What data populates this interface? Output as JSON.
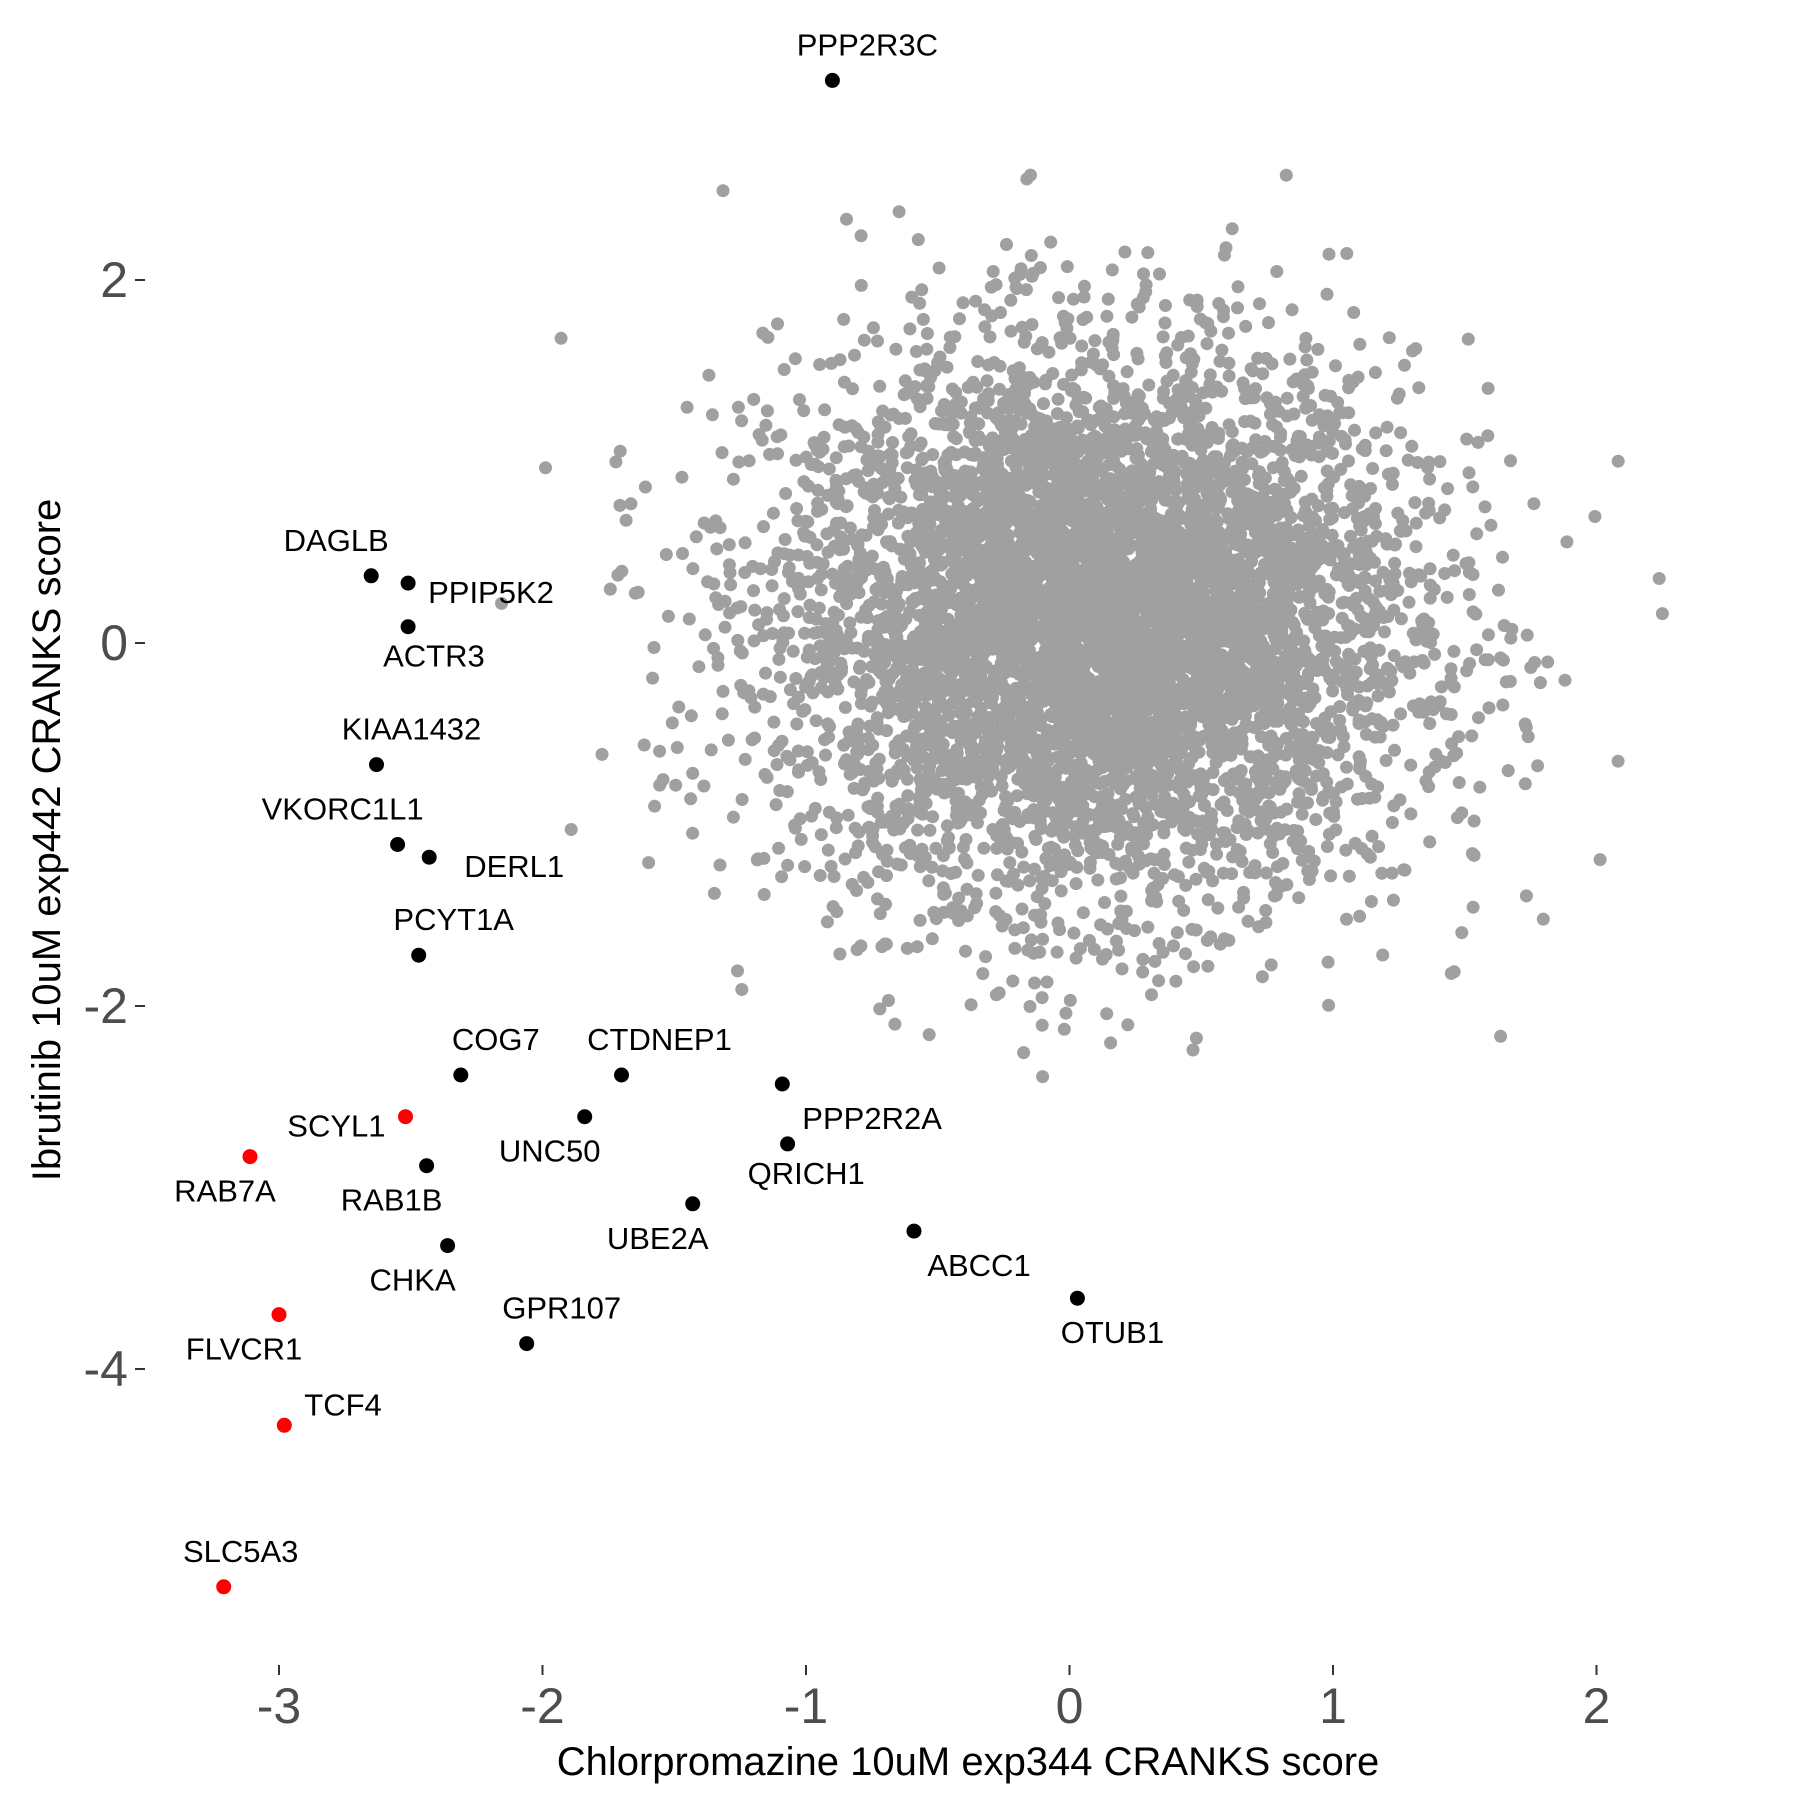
{
  "chart_data": {
    "type": "scatter",
    "title": "",
    "xlabel": "Chlorpromazine 10uM exp344 CRANKS score",
    "ylabel": "Ibrutinib 10uM exp442 CRANKS score",
    "xlim": [
      -3.3,
      2.5
    ],
    "ylim": [
      -5.6,
      3.3
    ],
    "x_ticks": [
      -3,
      -2,
      -1,
      0,
      1,
      2
    ],
    "y_ticks": [
      -4,
      -2,
      0,
      2
    ],
    "x_tick_labels": [
      "-3",
      "-2",
      "-1",
      "0",
      "1",
      "2"
    ],
    "y_tick_labels": [
      "-4",
      "-2",
      "0",
      "2"
    ],
    "grid": false,
    "legend": "none",
    "colors": {
      "background_points": "#a0a0a0",
      "labeled_points": "#000000",
      "highlighted_points": "#ff0000",
      "tick_text": "#4d4d4d"
    },
    "background_cloud": {
      "description_count": "thousands of genes",
      "center": [
        0.1,
        0.1
      ],
      "sd_x": 0.6,
      "sd_y": 0.75,
      "n_points": 6000
    },
    "labeled_points": [
      {
        "label": "PPP2R3C",
        "x": -0.9,
        "y": 3.1,
        "color": "black"
      },
      {
        "label": "DAGLB",
        "x": -2.65,
        "y": 0.37,
        "color": "black"
      },
      {
        "label": "PPIP5K2",
        "x": -2.51,
        "y": 0.33,
        "color": "black"
      },
      {
        "label": "ACTR3",
        "x": -2.51,
        "y": 0.09,
        "color": "black"
      },
      {
        "label": "KIAA1432",
        "x": -2.63,
        "y": -0.67,
        "color": "black"
      },
      {
        "label": "VKORC1L1",
        "x": -2.55,
        "y": -1.11,
        "color": "black"
      },
      {
        "label": "DERL1",
        "x": -2.43,
        "y": -1.18,
        "color": "black"
      },
      {
        "label": "PCYT1A",
        "x": -2.47,
        "y": -1.72,
        "color": "black"
      },
      {
        "label": "COG7",
        "x": -2.31,
        "y": -2.38,
        "color": "black"
      },
      {
        "label": "CTDNEP1",
        "x": -1.7,
        "y": -2.38,
        "color": "black"
      },
      {
        "label": "PPP2R2A",
        "x": -1.09,
        "y": -2.43,
        "color": "black"
      },
      {
        "label": "SCYL1",
        "x": -2.52,
        "y": -2.61,
        "color": "red"
      },
      {
        "label": "UNC50",
        "x": -1.84,
        "y": -2.61,
        "color": "black"
      },
      {
        "label": "RAB7A",
        "x": -3.11,
        "y": -2.83,
        "color": "red"
      },
      {
        "label": "RAB1B",
        "x": -2.44,
        "y": -2.88,
        "color": "black"
      },
      {
        "label": "QRICH1",
        "x": -1.07,
        "y": -2.76,
        "color": "black"
      },
      {
        "label": "UBE2A",
        "x": -1.43,
        "y": -3.09,
        "color": "black"
      },
      {
        "label": "ABCC1",
        "x": -0.59,
        "y": -3.24,
        "color": "black"
      },
      {
        "label": "CHKA",
        "x": -2.36,
        "y": -3.32,
        "color": "black"
      },
      {
        "label": "OTUB1",
        "x": 0.03,
        "y": -3.61,
        "color": "black"
      },
      {
        "label": "FLVCR1",
        "x": -3.0,
        "y": -3.7,
        "color": "red"
      },
      {
        "label": "GPR107",
        "x": -2.06,
        "y": -3.86,
        "color": "black"
      },
      {
        "label": "TCF4",
        "x": -2.98,
        "y": -4.31,
        "color": "red"
      },
      {
        "label": "SLC5A3",
        "x": -3.21,
        "y": -5.2,
        "color": "red"
      }
    ]
  }
}
